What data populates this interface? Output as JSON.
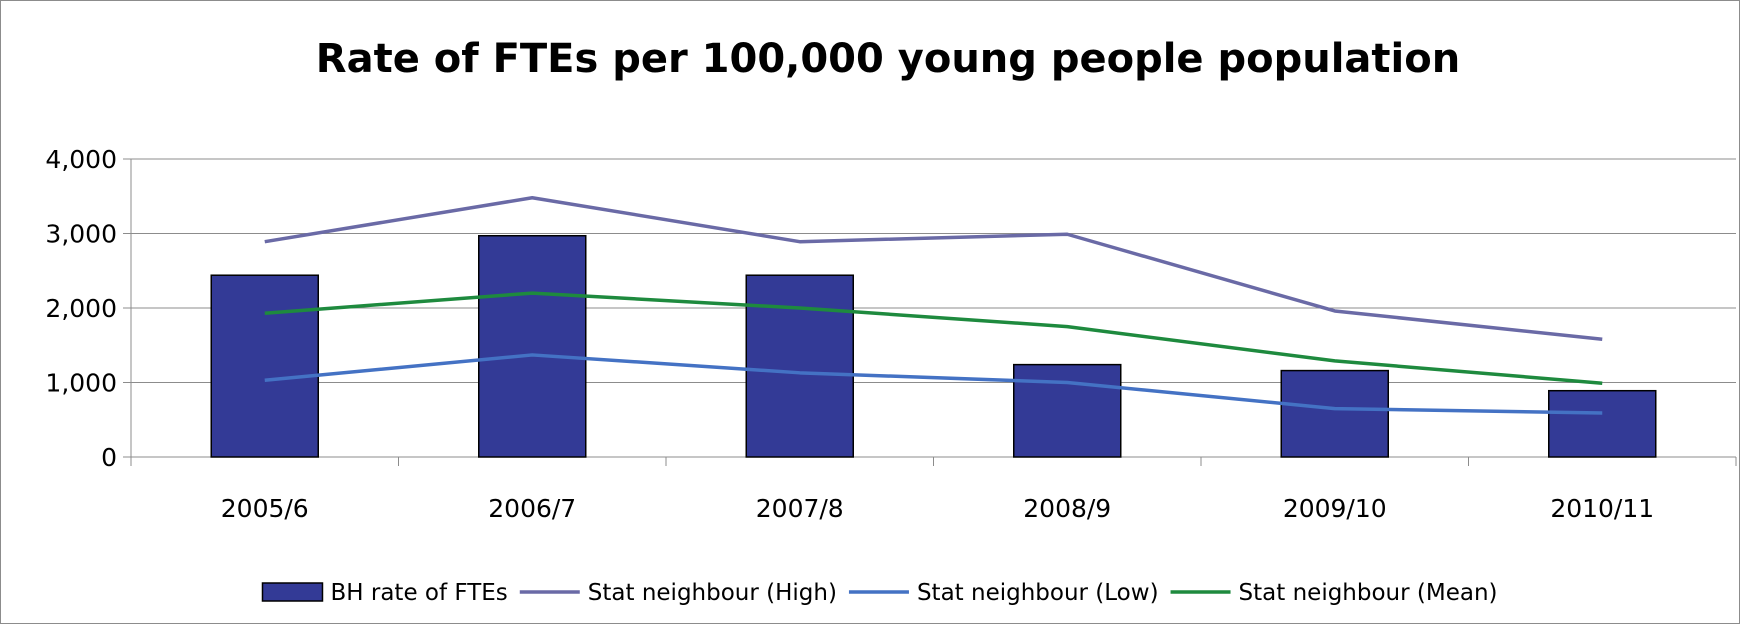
{
  "chart_data": {
    "type": "bar",
    "title": "Rate of FTEs per 100,000 young people population",
    "xlabel": "",
    "ylabel": "",
    "categories": [
      "2005/6",
      "2006/7",
      "2007/8",
      "2008/9",
      "2009/10",
      "2010/11"
    ],
    "ylim": [
      0,
      4000
    ],
    "yticks": [
      0,
      1000,
      2000,
      3000,
      4000
    ],
    "ytick_labels": [
      "0",
      "1,000",
      "2,000",
      "3,000",
      "4,000"
    ],
    "grid": true,
    "legend_position": "bottom",
    "series": [
      {
        "name": "BH rate of FTEs",
        "type": "bar",
        "color": "#333a96",
        "values": [
          2440,
          2970,
          2440,
          1240,
          1160,
          890
        ]
      },
      {
        "name": "Stat neighbour (High)",
        "type": "line",
        "color": "#6a6aa6",
        "values": [
          2890,
          3480,
          2890,
          2990,
          1960,
          1580
        ]
      },
      {
        "name": "Stat neighbour (Low)",
        "type": "line",
        "color": "#4472c4",
        "values": [
          1030,
          1370,
          1130,
          1000,
          650,
          590
        ]
      },
      {
        "name": "Stat neighbour (Mean)",
        "type": "line",
        "color": "#1e8a3e",
        "values": [
          1930,
          2200,
          2000,
          1750,
          1290,
          990
        ]
      }
    ]
  }
}
